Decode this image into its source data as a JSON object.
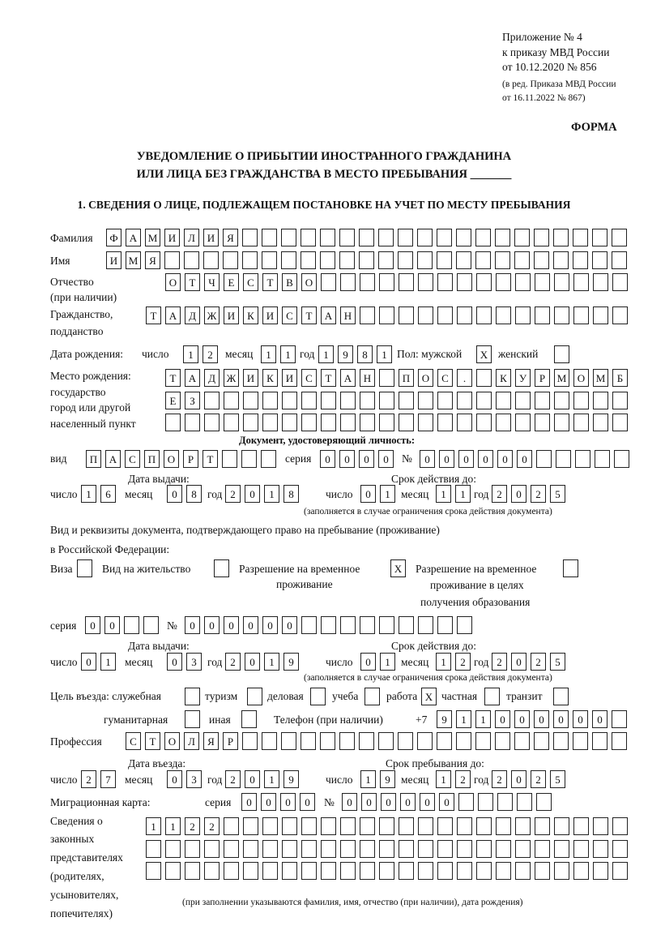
{
  "header": {
    "appendix": "Приложение № 4",
    "order": "к приказу МВД России",
    "order_date": "от 10.12.2020 № 856",
    "amend1": "(в ред. Приказа МВД России",
    "amend2": "от 16.11.2022 № 867)",
    "form": "ФОРМА",
    "title1": "УВЕДОМЛЕНИЕ О ПРИБЫТИИ ИНОСТРАННОГО ГРАЖДАНИНА",
    "title2": "ИЛИ ЛИЦА БЕЗ ГРАЖДАНСТВА В МЕСТО ПРЕБЫВАНИЯ _______",
    "section1": "1. СВЕДЕНИЯ О ЛИЦЕ, ПОДЛЕЖАЩЕМ ПОСТАНОВКЕ НА УЧЕТ ПО МЕСТУ ПРЕБЫВАНИЯ"
  },
  "labels": {
    "surname": "Фамилия",
    "name": "Имя",
    "patronymic": "Отчество",
    "patronymic2": "(при наличии)",
    "citizenship": "Гражданство,",
    "citizenship2": "подданство",
    "dob": "Дата рождения:",
    "day": "число",
    "month": "месяц",
    "year": "год",
    "sex": "Пол: мужской",
    "female": "женский",
    "pob1": "Место рождения:",
    "pob2": "государство",
    "pob3": "город или другой",
    "pob4": "населенный пункт",
    "id_doc": "Документ, удостоверяющий личность:",
    "kind": "вид",
    "series": "серия",
    "number": "№",
    "issue_date": "Дата выдачи:",
    "valid_until": "Срок действия до:",
    "validity_note": "(заполняется в случае ограничения срока действия документа)",
    "right_doc1": "Вид и реквизиты документа, подтверждающего право на пребывание (проживание)",
    "right_doc2": "в Российской Федерации:",
    "visa": "Виза",
    "residence": "Вид на жительство",
    "trp1": "Разрешение на временное",
    "trp2": "проживание",
    "trpe1": "Разрешение на временное",
    "trpe2": "проживание в целях",
    "trpe3": "получения образования",
    "purpose": "Цель въезда: служебная",
    "tourism": "туризм",
    "business": "деловая",
    "study": "учеба",
    "work": "работа",
    "private": "частная",
    "transit": "транзит",
    "humanitarian": "гуманитарная",
    "other": "иная",
    "phone": "Телефон (при наличии)",
    "phone_prefix": "+7",
    "profession": "Профессия",
    "entry_date": "Дата въезда:",
    "stay_until": "Срок пребывания до:",
    "migration_card": "Миграционная карта:",
    "reps1": "Сведения о",
    "reps2": "законных",
    "reps3": "представителях",
    "reps4": "(родителях,",
    "reps5": "усыновителях,",
    "reps6": "попечителях)",
    "reps_note": "(при заполнении указываются фамилия, имя, отчество (при наличии), дата рождения)"
  },
  "fields": {
    "surname": "ФАМИЛИЯ",
    "name": "ИМЯ",
    "patronymic": "ОТЧЕСТВО",
    "citizenship": "ТАДЖИКИСТАН",
    "dob_day": "12",
    "dob_month": "11",
    "dob_year": "1981",
    "sex_male": "X",
    "sex_female": "",
    "pob_row1": "ТАДЖИКИСТАН ПОС. КУРМОМБ",
    "pob_row2": "ЕЗ",
    "pob_row3": "",
    "id_kind": "ПАСПОРТ",
    "id_series": "0000",
    "id_number": "000000",
    "id_issue_day": "16",
    "id_issue_month": "08",
    "id_issue_year": "2018",
    "id_valid_day": "01",
    "id_valid_month": "11",
    "id_valid_year": "2025",
    "visa": "",
    "residence": "",
    "trp": "X",
    "trpe": "",
    "rd_series": "00",
    "rd_number": "000000",
    "rd_issue_day": "01",
    "rd_issue_month": "03",
    "rd_issue_year": "2019",
    "rd_valid_day": "01",
    "rd_valid_month": "12",
    "rd_valid_year": "2025",
    "p_official": "",
    "p_tourism": "",
    "p_business": "",
    "p_study": "",
    "p_work": "X",
    "p_private": "",
    "p_transit": "",
    "p_humanitarian": "",
    "p_other": "",
    "phone": "911000000",
    "profession": "СТОЛЯР",
    "entry_day": "27",
    "entry_month": "03",
    "entry_year": "2019",
    "stay_day": "19",
    "stay_month": "12",
    "stay_year": "2025",
    "mc_series": "0000",
    "mc_number": "000000",
    "reps_row1": "1122",
    "reps_row2": "",
    "reps_row3": ""
  }
}
